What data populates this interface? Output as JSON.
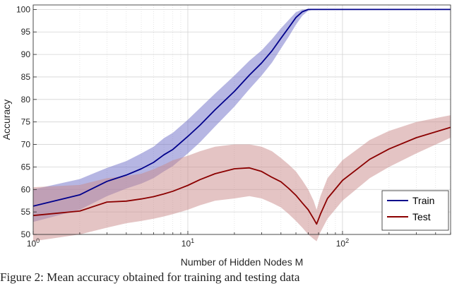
{
  "chart_data": {
    "type": "line",
    "title": "",
    "xlabel": "Number of Hidden Nodes M",
    "ylabel": "Accuracy",
    "xscale": "log",
    "xlim": [
      1,
      500
    ],
    "ylim": [
      50,
      101
    ],
    "x_ticks": [
      {
        "value": 1,
        "base": "10",
        "exp": "0"
      },
      {
        "value": 10,
        "base": "10",
        "exp": "1"
      },
      {
        "value": 100,
        "base": "10",
        "exp": "2"
      }
    ],
    "y_ticks": [
      "50",
      "55",
      "60",
      "65",
      "70",
      "75",
      "80",
      "85",
      "90",
      "95",
      "100"
    ],
    "grid": true,
    "legend_position": "bottom-right",
    "series": [
      {
        "name": "Train",
        "color": "#00008b",
        "band_color": "#6e6ec8",
        "x": [
          1,
          2,
          3,
          4,
          5,
          6,
          7,
          8,
          10,
          12,
          15,
          20,
          25,
          30,
          35,
          40,
          45,
          50,
          55,
          60,
          65,
          70,
          100,
          200,
          300,
          500
        ],
        "y": [
          56.3,
          58.8,
          61.8,
          63.2,
          64.6,
          66,
          67.7,
          68.9,
          71.8,
          74.3,
          77.7,
          81.8,
          85.4,
          88.1,
          90.8,
          93.6,
          96,
          98.2,
          99.5,
          100,
          100,
          100,
          100,
          100,
          100,
          100
        ],
        "lower": [
          52.8,
          55.5,
          58.5,
          60.2,
          61.3,
          62.5,
          64,
          65.2,
          68,
          70.5,
          74,
          78.4,
          82.3,
          85.3,
          88.2,
          91.3,
          94,
          96.6,
          98.6,
          99.7,
          100,
          100,
          100,
          100,
          100,
          100
        ],
        "upper": [
          60,
          62.3,
          64.8,
          66.3,
          68,
          69.5,
          71.4,
          72.6,
          75.5,
          78.1,
          81.3,
          85.3,
          88.6,
          90.9,
          93.4,
          95.8,
          97.7,
          99.4,
          100,
          100,
          100,
          100,
          100,
          100,
          100,
          100
        ]
      },
      {
        "name": "Test",
        "color": "#8b0000",
        "band_color": "#c98a8a",
        "x": [
          1,
          2,
          3,
          4,
          5,
          6,
          7,
          8,
          10,
          12,
          15,
          20,
          25,
          30,
          35,
          40,
          45,
          50,
          55,
          60,
          65,
          68,
          72,
          80,
          100,
          150,
          200,
          300,
          500
        ],
        "y": [
          54.2,
          55.2,
          57.2,
          57.4,
          57.9,
          58.4,
          59,
          59.6,
          60.9,
          62.2,
          63.5,
          64.6,
          64.8,
          64,
          62.7,
          61.7,
          60.2,
          58.7,
          57,
          55.5,
          53.5,
          52.3,
          54.5,
          58,
          62,
          66.7,
          69,
          71.5,
          73.8
        ],
        "lower": [
          48.5,
          50,
          51.5,
          52.5,
          53,
          53.5,
          54,
          54.5,
          55.5,
          56.5,
          57.5,
          58,
          58.5,
          58,
          57,
          56,
          54.5,
          53,
          51.5,
          50,
          49,
          48.5,
          50.5,
          53.5,
          57.5,
          62.5,
          65,
          68,
          71.5
        ],
        "upper": [
          60.5,
          61,
          62.5,
          63,
          63.5,
          64.5,
          65.5,
          66.5,
          67.5,
          68.5,
          69.5,
          70,
          70,
          69.5,
          68.5,
          67,
          65.5,
          64,
          62,
          60,
          57.5,
          55.5,
          58.5,
          62.5,
          66.5,
          71,
          73,
          75,
          76.5
        ]
      }
    ]
  },
  "caption": "Figure 2: Mean accuracy obtained for training and testing data"
}
